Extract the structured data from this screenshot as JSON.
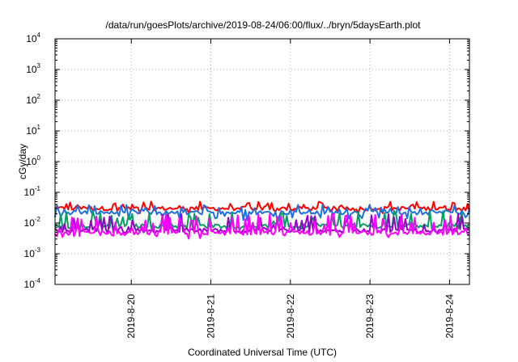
{
  "chart_data": {
    "type": "line",
    "title": "/data/run/goesPlots/archive/2019-08-24/06:00/flux/../bryn/5daysEarth.plot",
    "xlabel": "Coordinated Universal Time (UTC)",
    "ylabel": "cGy/day",
    "yscale": "log",
    "ylim": [
      0.0001,
      10000
    ],
    "y_ticks": [
      {
        "base": "10",
        "exp": "-4"
      },
      {
        "base": "10",
        "exp": "-3"
      },
      {
        "base": "10",
        "exp": "-2"
      },
      {
        "base": "10",
        "exp": "-1"
      },
      {
        "base": "10",
        "exp": "0"
      },
      {
        "base": "10",
        "exp": "1"
      },
      {
        "base": "10",
        "exp": "2"
      },
      {
        "base": "10",
        "exp": "3"
      },
      {
        "base": "10",
        "exp": "4"
      }
    ],
    "x_start": "2019-08-19T01:00",
    "x_end": "2019-08-24T06:00",
    "x_ticks": [
      "2019-8-20",
      "2019-8-21",
      "2019-8-22",
      "2019-8-23",
      "2019-8-24"
    ],
    "x_tick_values": [
      "2019-08-20T00:00",
      "2019-08-21T00:00",
      "2019-08-22T00:00",
      "2019-08-23T00:00",
      "2019-08-24T00:00"
    ],
    "grid": true,
    "series": [
      {
        "color": "#ff0000",
        "base": 0.03,
        "low": 0.02,
        "high": 0.05
      },
      {
        "color": "#1e6fe0",
        "base": 0.022,
        "low": 0.012,
        "high": 0.04
      },
      {
        "color": "#00a060",
        "base": 0.008,
        "low": 0.006,
        "high": 0.025
      },
      {
        "color": "#9900cc",
        "base": 0.0058,
        "low": 0.0045,
        "high": 0.02
      },
      {
        "color": "#ff00ff",
        "base": 0.0048,
        "low": 0.003,
        "high": 0.02
      }
    ]
  }
}
